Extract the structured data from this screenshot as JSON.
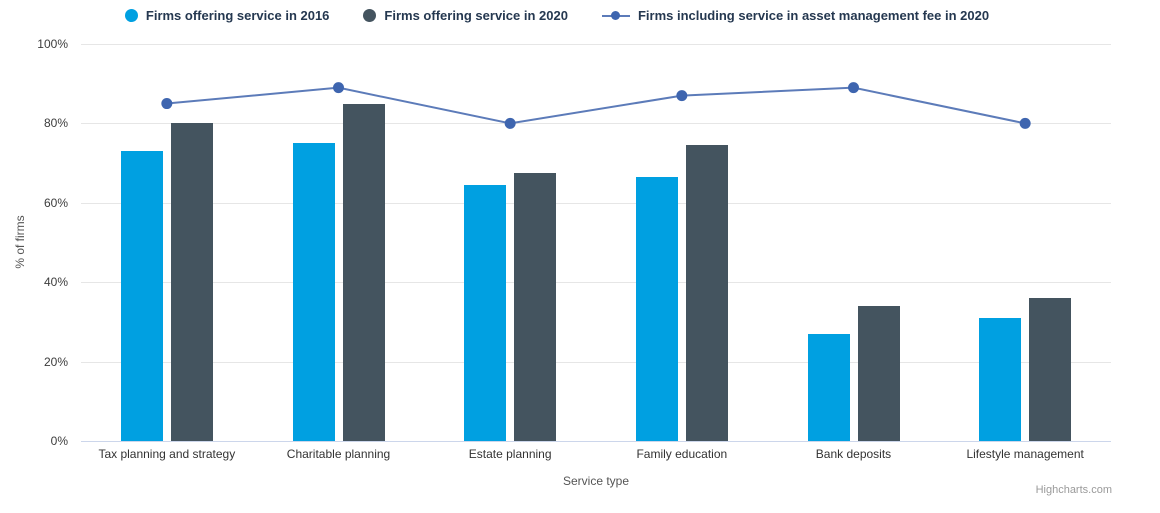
{
  "chart": {
    "credits": "Highcharts.com"
  },
  "chart_data": {
    "type": "bar",
    "subtype": "grouped columns with overlay line",
    "title": "",
    "xlabel": "Service type",
    "ylabel": "% of firms",
    "ylim": [
      0,
      100
    ],
    "ytick_labels": [
      "0%",
      "20%",
      "40%",
      "60%",
      "80%",
      "100%"
    ],
    "grid": true,
    "legend_position": "top",
    "categories": [
      "Tax planning and strategy",
      "Charitable planning",
      "Estate planning",
      "Family education",
      "Bank deposits",
      "Lifestyle management"
    ],
    "series": [
      {
        "name": "Firms offering service in 2016",
        "type": "column",
        "color": "#00A0E1",
        "values": [
          73,
          75,
          64.5,
          66.5,
          27,
          31
        ]
      },
      {
        "name": "Firms offering service in 2020",
        "type": "column",
        "color": "#44545F",
        "values": [
          80,
          85,
          67.5,
          74.5,
          34,
          36
        ]
      },
      {
        "name": "Firms including service in asset management fee in 2020",
        "type": "line",
        "color": "#5C7BB9",
        "marker_color": "#3E65AF",
        "values": [
          85,
          89,
          80,
          87,
          89,
          80
        ]
      }
    ]
  }
}
